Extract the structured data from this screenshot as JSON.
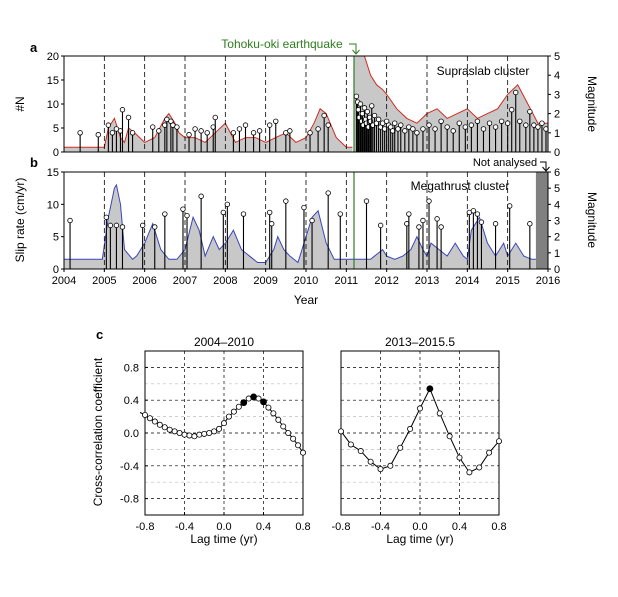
{
  "figure": {
    "panel_labels": [
      "a",
      "b",
      "c"
    ],
    "tohoku_annotation": "Tohoku-oki earthquake",
    "not_analysed_annotation": "Not analysed",
    "colors": {
      "fill_gray": "#c8c8c8",
      "red_line": "#d02a1e",
      "blue_line": "#3a46b8",
      "green_line": "#2e7d1f",
      "dark_gray_band": "#808080",
      "grid_dash": "#000000"
    }
  },
  "chart_data": [
    {
      "id": "a",
      "type": "area",
      "title": "Supraslab cluster",
      "ylabel": "#N",
      "ylabel_right": "Magnitude",
      "xlim": [
        2004,
        2016
      ],
      "ylim": [
        0,
        20
      ],
      "yticks": [
        0,
        5,
        10,
        15,
        20
      ],
      "ylim_right": [
        0,
        5
      ],
      "yticks_right": [
        0,
        1,
        2,
        3,
        4,
        5
      ],
      "xgrid": [
        2005,
        2006,
        2007,
        2008,
        2009,
        2010,
        2011,
        2012,
        2013,
        2014,
        2015
      ],
      "tohoku_year": 2011.19,
      "series": [
        {
          "kind": "area",
          "x": [
            2004.0,
            2004.25,
            2004.5,
            2004.75,
            2005.0,
            2005.1,
            2005.25,
            2005.4,
            2005.5,
            2005.6,
            2005.75,
            2006.0,
            2006.25,
            2006.5,
            2006.6,
            2006.75,
            2006.85,
            2007.0,
            2007.25,
            2007.5,
            2007.75,
            2008.0,
            2008.25,
            2008.5,
            2008.75,
            2009.0,
            2009.25,
            2009.5,
            2009.75,
            2010.0,
            2010.2,
            2010.35,
            2010.5,
            2010.75,
            2011.0,
            2011.15
          ],
          "values": [
            1,
            1,
            1,
            1,
            1,
            5,
            7,
            3,
            2,
            5,
            4,
            2,
            3,
            7,
            8,
            6,
            4,
            3,
            3,
            2,
            4,
            6,
            2,
            3,
            3,
            2,
            3,
            4,
            2,
            3,
            6,
            9,
            8,
            3,
            1,
            1
          ]
        },
        {
          "kind": "area",
          "x": [
            2011.19,
            2011.2,
            2011.45,
            2011.6,
            2011.75,
            2011.9,
            2012.0,
            2012.25,
            2012.5,
            2012.75,
            2013.0,
            2013.25,
            2013.5,
            2013.75,
            2014.0,
            2014.25,
            2014.5,
            2014.75,
            2015.0,
            2015.25,
            2015.5,
            2015.75,
            2016.0
          ],
          "values": [
            20,
            20,
            20,
            16,
            14,
            13,
            12,
            9,
            7,
            6,
            8,
            9,
            7,
            8,
            9,
            7,
            8,
            9,
            12,
            14,
            10,
            6,
            6
          ]
        },
        {
          "kind": "stem",
          "name": "Magnitude",
          "points": [
            [
              2004.4,
              1.0
            ],
            [
              2004.85,
              0.9
            ],
            [
              2005.1,
              1.4
            ],
            [
              2005.2,
              1.0
            ],
            [
              2005.3,
              1.2
            ],
            [
              2005.4,
              1.1
            ],
            [
              2005.45,
              2.2
            ],
            [
              2005.6,
              1.8
            ],
            [
              2005.7,
              1.0
            ],
            [
              2006.2,
              1.3
            ],
            [
              2006.35,
              1.1
            ],
            [
              2006.5,
              1.4
            ],
            [
              2006.55,
              1.7
            ],
            [
              2006.65,
              1.6
            ],
            [
              2006.7,
              1.4
            ],
            [
              2006.8,
              1.3
            ],
            [
              2007.1,
              0.9
            ],
            [
              2007.25,
              1.2
            ],
            [
              2007.4,
              1.1
            ],
            [
              2007.55,
              1.0
            ],
            [
              2007.7,
              1.3
            ],
            [
              2007.75,
              1.8
            ],
            [
              2008.2,
              1.0
            ],
            [
              2008.35,
              1.2
            ],
            [
              2008.5,
              1.4
            ],
            [
              2008.7,
              1.0
            ],
            [
              2008.85,
              1.1
            ],
            [
              2009.1,
              1.4
            ],
            [
              2009.25,
              1.6
            ],
            [
              2009.5,
              1.0
            ],
            [
              2009.6,
              1.1
            ],
            [
              2010.1,
              1.0
            ],
            [
              2010.3,
              1.2
            ],
            [
              2010.45,
              1.9
            ],
            [
              2010.55,
              1.4
            ],
            [
              2011.25,
              2.9
            ],
            [
              2011.28,
              2.6
            ],
            [
              2011.3,
              2.2
            ],
            [
              2011.32,
              1.8
            ],
            [
              2011.35,
              2.5
            ],
            [
              2011.38,
              1.6
            ],
            [
              2011.4,
              2.0
            ],
            [
              2011.42,
              1.4
            ],
            [
              2011.45,
              2.3
            ],
            [
              2011.48,
              1.7
            ],
            [
              2011.5,
              1.5
            ],
            [
              2011.52,
              2.1
            ],
            [
              2011.55,
              1.3
            ],
            [
              2011.58,
              1.8
            ],
            [
              2011.6,
              1.6
            ],
            [
              2011.63,
              2.4
            ],
            [
              2011.66,
              1.4
            ],
            [
              2011.7,
              1.9
            ],
            [
              2011.75,
              1.5
            ],
            [
              2011.8,
              1.7
            ],
            [
              2011.85,
              1.3
            ],
            [
              2011.9,
              1.5
            ],
            [
              2011.95,
              1.2
            ],
            [
              2012.0,
              1.6
            ],
            [
              2012.05,
              1.4
            ],
            [
              2012.1,
              1.3
            ],
            [
              2012.15,
              1.1
            ],
            [
              2012.2,
              1.5
            ],
            [
              2012.28,
              1.2
            ],
            [
              2012.35,
              1.4
            ],
            [
              2012.45,
              1.1
            ],
            [
              2012.55,
              1.3
            ],
            [
              2012.65,
              1.2
            ],
            [
              2012.75,
              1.0
            ],
            [
              2012.9,
              1.2
            ],
            [
              2013.05,
              1.4
            ],
            [
              2013.2,
              1.2
            ],
            [
              2013.35,
              1.6
            ],
            [
              2013.5,
              1.3
            ],
            [
              2013.65,
              1.1
            ],
            [
              2013.8,
              1.5
            ],
            [
              2013.95,
              1.3
            ],
            [
              2014.1,
              1.4
            ],
            [
              2014.25,
              1.6
            ],
            [
              2014.4,
              1.2
            ],
            [
              2014.55,
              1.5
            ],
            [
              2014.7,
              1.3
            ],
            [
              2014.85,
              1.6
            ],
            [
              2015.0,
              1.5
            ],
            [
              2015.1,
              2.2
            ],
            [
              2015.2,
              3.1
            ],
            [
              2015.3,
              1.6
            ],
            [
              2015.45,
              1.4
            ],
            [
              2015.55,
              2.1
            ],
            [
              2015.65,
              1.4
            ],
            [
              2015.75,
              1.3
            ],
            [
              2015.85,
              1.5
            ],
            [
              2015.95,
              1.2
            ]
          ]
        }
      ]
    },
    {
      "id": "b",
      "type": "area",
      "title": "Megathrust cluster",
      "ylabel": "Slip rate (cm/yr)",
      "ylabel_right": "Magnitude",
      "xlabel": "Year",
      "xlim": [
        2004,
        2016
      ],
      "ylim": [
        0,
        15
      ],
      "yticks": [
        0,
        5,
        10,
        15
      ],
      "ylim_right": [
        0,
        6
      ],
      "yticks_right": [
        0,
        1,
        2,
        3,
        4,
        5,
        6
      ],
      "xticks": [
        2004,
        2005,
        2006,
        2007,
        2008,
        2009,
        2010,
        2011,
        2012,
        2013,
        2014,
        2015,
        2016
      ],
      "xgrid": [
        2005,
        2006,
        2007,
        2008,
        2009,
        2010,
        2011,
        2012,
        2013,
        2014,
        2015
      ],
      "tohoku_year": 2011.19,
      "not_analysed_range": [
        2015.7,
        2016
      ],
      "series": [
        {
          "kind": "area",
          "x": [
            2004.0,
            2004.3,
            2004.5,
            2004.75,
            2004.95,
            2005.1,
            2005.25,
            2005.3,
            2005.4,
            2005.5,
            2005.7,
            2005.8,
            2006.0,
            2006.2,
            2006.4,
            2006.6,
            2006.8,
            2007.0,
            2007.2,
            2007.35,
            2007.5,
            2007.7,
            2007.85,
            2008.0,
            2008.2,
            2008.4,
            2008.6,
            2008.8,
            2009.0,
            2009.2,
            2009.3,
            2009.45,
            2009.6,
            2009.8,
            2010.0,
            2010.15,
            2010.3,
            2010.5,
            2010.7,
            2010.9,
            2011.1,
            2011.25,
            2011.6,
            2011.7,
            2011.9,
            2012.0,
            2012.2,
            2012.4,
            2012.6,
            2012.75,
            2012.9,
            2013.0,
            2013.1,
            2013.3,
            2013.5,
            2013.7,
            2013.9,
            2014.0,
            2014.1,
            2014.3,
            2014.5,
            2014.7,
            2014.9,
            2015.0,
            2015.2,
            2015.4,
            2015.6,
            2015.7
          ],
          "values": [
            1.5,
            1.5,
            1.5,
            1.5,
            1.5,
            8,
            12.5,
            13,
            10,
            3,
            1.5,
            2,
            4,
            7,
            3,
            1.5,
            1.5,
            3,
            8,
            6,
            2,
            5,
            3,
            4,
            6,
            3,
            2,
            1,
            1,
            3,
            5,
            3,
            2,
            1,
            5,
            8,
            9,
            4,
            1.5,
            1.5,
            1.5,
            1.5,
            1.5,
            2,
            3,
            2,
            1.5,
            2,
            3,
            5,
            3,
            2,
            4,
            3,
            2,
            4,
            2,
            1.5,
            6,
            8,
            4,
            2,
            4,
            2,
            4,
            2,
            1.5,
            1.5
          ]
        },
        {
          "kind": "stem",
          "name": "Magnitude",
          "points": [
            [
              2004.15,
              3.0
            ],
            [
              2005.05,
              3.2
            ],
            [
              2005.15,
              2.7
            ],
            [
              2005.3,
              2.7
            ],
            [
              2005.45,
              2.6
            ],
            [
              2005.95,
              2.7
            ],
            [
              2006.25,
              2.6
            ],
            [
              2006.5,
              3.4
            ],
            [
              2006.95,
              3.7
            ],
            [
              2007.05,
              3.3
            ],
            [
              2007.4,
              4.5
            ],
            [
              2007.95,
              3.5
            ],
            [
              2008.05,
              4.0
            ],
            [
              2008.45,
              3.4
            ],
            [
              2009.1,
              3.5
            ],
            [
              2009.15,
              2.8
            ],
            [
              2009.5,
              4.2
            ],
            [
              2009.95,
              3.8
            ],
            [
              2010.15,
              3.0
            ],
            [
              2010.55,
              4.7
            ],
            [
              2010.85,
              3.4
            ],
            [
              2011.5,
              4.2
            ],
            [
              2011.85,
              2.7
            ],
            [
              2012.5,
              2.8
            ],
            [
              2012.55,
              3.4
            ],
            [
              2012.8,
              2.6
            ],
            [
              2012.9,
              3.0
            ],
            [
              2013.05,
              4.2
            ],
            [
              2013.25,
              3.1
            ],
            [
              2013.35,
              2.6
            ],
            [
              2014.05,
              3.5
            ],
            [
              2014.15,
              3.6
            ],
            [
              2014.25,
              3.4
            ],
            [
              2014.35,
              2.9
            ],
            [
              2014.7,
              2.8
            ],
            [
              2015.05,
              3.9
            ],
            [
              2015.55,
              2.8
            ]
          ]
        }
      ]
    },
    {
      "id": "c-left",
      "type": "line",
      "title": "2004–2010",
      "xlabel": "Lag time (yr)",
      "ylabel": "Cross-correlation coefficient",
      "xlim": [
        -0.8,
        0.8
      ],
      "ylim": [
        -1.0,
        1.0
      ],
      "xticks": [
        -0.8,
        -0.4,
        0.0,
        0.4,
        0.8
      ],
      "yticks": [
        -0.8,
        -0.4,
        0.0,
        0.4,
        0.8
      ],
      "grid": true,
      "x": [
        -0.85,
        -0.8,
        -0.75,
        -0.7,
        -0.65,
        -0.6,
        -0.55,
        -0.5,
        -0.45,
        -0.4,
        -0.35,
        -0.3,
        -0.25,
        -0.2,
        -0.15,
        -0.1,
        -0.05,
        0.0,
        0.05,
        0.1,
        0.15,
        0.2,
        0.25,
        0.3,
        0.35,
        0.4,
        0.45,
        0.5,
        0.55,
        0.6,
        0.65,
        0.7,
        0.75,
        0.8
      ],
      "values": [
        0.25,
        0.22,
        0.18,
        0.14,
        0.1,
        0.07,
        0.04,
        0.02,
        0.0,
        -0.02,
        -0.03,
        -0.04,
        -0.02,
        -0.01,
        0.0,
        0.02,
        0.05,
        0.12,
        0.2,
        0.26,
        0.32,
        0.37,
        0.42,
        0.44,
        0.42,
        0.38,
        0.31,
        0.24,
        0.16,
        0.08,
        0.0,
        -0.07,
        -0.15,
        -0.24
      ],
      "highlighted": [
        0.2,
        0.3,
        0.4
      ]
    },
    {
      "id": "c-right",
      "type": "line",
      "title": "2013–2015.5",
      "xlabel": "Lag time (yr)",
      "xlim": [
        -0.8,
        0.8
      ],
      "ylim": [
        -1.0,
        1.0
      ],
      "xticks": [
        -0.8,
        -0.4,
        0.0,
        0.4,
        0.8
      ],
      "grid": true,
      "x": [
        -0.8,
        -0.7,
        -0.6,
        -0.5,
        -0.4,
        -0.3,
        -0.2,
        -0.1,
        0.0,
        0.1,
        0.2,
        0.3,
        0.4,
        0.5,
        0.6,
        0.7,
        0.8
      ],
      "values": [
        0.02,
        -0.14,
        -0.22,
        -0.35,
        -0.44,
        -0.4,
        -0.18,
        0.05,
        0.3,
        0.54,
        0.24,
        -0.04,
        -0.3,
        -0.48,
        -0.42,
        -0.24,
        -0.1
      ],
      "highlighted": [
        0.1
      ]
    }
  ]
}
